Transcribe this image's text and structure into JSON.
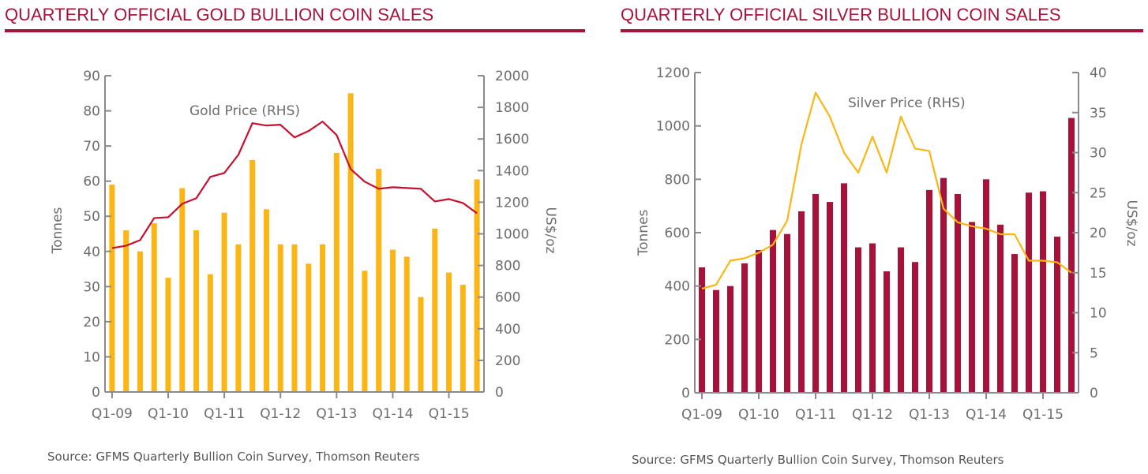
{
  "chart_data": [
    {
      "type": "bar",
      "title": "QUARTERLY OFFICIAL GOLD BULLION COIN SALES",
      "ylabel": "Tonnes",
      "y2label": "US$/oz",
      "ylim": [
        0,
        90
      ],
      "y2lim": [
        0,
        2000
      ],
      "yticks": [
        0,
        10,
        20,
        30,
        40,
        50,
        60,
        70,
        80,
        90
      ],
      "y2ticks": [
        0,
        200,
        400,
        600,
        800,
        1000,
        1200,
        1400,
        1600,
        1800,
        2000
      ],
      "x_tick_labels": [
        "Q1-09",
        "Q1-10",
        "Q1-11",
        "Q1-12",
        "Q1-13",
        "Q1-14",
        "Q1-15"
      ],
      "series_label": "Gold Price (RHS)",
      "bar_color": "#fbb615",
      "line_color": "#c8102e",
      "values": [
        59,
        46,
        40,
        48,
        32.5,
        58,
        46,
        33.5,
        51,
        42,
        66,
        52,
        42,
        42,
        36.5,
        42,
        68,
        85,
        34.5,
        63.5,
        40.5,
        38.5,
        27,
        46.5,
        34,
        30.5,
        60.5
      ],
      "line_values": [
        910,
        925,
        960,
        1100,
        1105,
        1190,
        1225,
        1360,
        1385,
        1500,
        1700,
        1685,
        1690,
        1610,
        1650,
        1710,
        1625,
        1410,
        1330,
        1285,
        1295,
        1290,
        1285,
        1205,
        1220,
        1195,
        1130
      ],
      "source": "Source: GFMS Quarterly Bullion Coin Survey, Thomson Reuters"
    },
    {
      "type": "bar",
      "title": "QUARTERLY OFFICIAL SILVER BULLION COIN SALES",
      "ylabel": "Tonnes",
      "y2label": "US$/oz",
      "ylim": [
        0,
        1200
      ],
      "y2lim": [
        0,
        40
      ],
      "yticks": [
        0,
        200,
        400,
        600,
        800,
        1000,
        1200
      ],
      "y2ticks": [
        0,
        5,
        10,
        15,
        20,
        25,
        30,
        35,
        40
      ],
      "x_tick_labels": [
        "Q1-09",
        "Q1-10",
        "Q1-11",
        "Q1-12",
        "Q1-13",
        "Q1-14",
        "Q1-15"
      ],
      "series_label": "Silver Price (RHS)",
      "bar_color": "#a8123a",
      "line_color": "#fbb615",
      "values": [
        470,
        385,
        400,
        485,
        535,
        610,
        595,
        680,
        745,
        715,
        785,
        545,
        560,
        455,
        545,
        490,
        760,
        805,
        745,
        640,
        800,
        630,
        520,
        750,
        755,
        585,
        1030
      ],
      "line_values": [
        13,
        13.5,
        16.5,
        16.8,
        17.5,
        18.5,
        21.5,
        31,
        37.5,
        34.5,
        30,
        27.5,
        32,
        27.5,
        34.5,
        30.5,
        30.2,
        23,
        21.3,
        20.8,
        20.5,
        19.8,
        19.8,
        16.5,
        16.5,
        16.3,
        15
      ]
    }
  ],
  "right_source": "Source: GFMS Quarterly Bullion Coin Survey, Thomson Reuters"
}
